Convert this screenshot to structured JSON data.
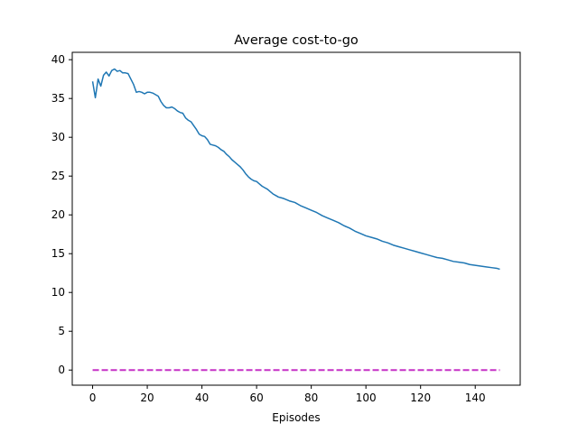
{
  "chart_data": {
    "type": "line",
    "title": "Average cost-to-go",
    "xlabel": "Episodes",
    "ylabel": "",
    "xlim": [
      -7.45,
      156.45
    ],
    "ylim": [
      -1.95,
      40.95
    ],
    "xticks": [
      0,
      20,
      40,
      60,
      80,
      100,
      120,
      140
    ],
    "yticks": [
      0,
      5,
      10,
      15,
      20,
      25,
      30,
      35,
      40
    ],
    "grid": false,
    "series": [
      {
        "color": "#1f77b4",
        "style": "solid",
        "x": [
          0,
          1,
          2,
          3,
          4,
          5,
          6,
          7,
          8,
          9,
          10,
          11,
          12,
          13,
          14,
          15,
          16,
          17,
          18,
          19,
          20,
          21,
          22,
          23,
          24,
          25,
          26,
          27,
          28,
          29,
          30,
          31,
          32,
          33,
          34,
          35,
          36,
          37,
          38,
          39,
          40,
          41,
          42,
          43,
          44,
          45,
          46,
          47,
          48,
          49,
          50,
          51,
          52,
          53,
          54,
          55,
          56,
          57,
          58,
          59,
          60,
          61,
          62,
          63,
          64,
          65,
          66,
          67,
          68,
          69,
          70,
          72,
          74,
          76,
          78,
          80,
          82,
          84,
          86,
          88,
          90,
          92,
          94,
          96,
          98,
          100,
          102,
          104,
          106,
          108,
          110,
          112,
          114,
          116,
          118,
          120,
          122,
          124,
          126,
          128,
          130,
          132,
          134,
          136,
          138,
          140,
          142,
          144,
          146,
          148,
          149
        ],
        "y": [
          37.2,
          35.1,
          37.5,
          36.6,
          38.0,
          38.4,
          37.9,
          38.6,
          38.8,
          38.5,
          38.6,
          38.3,
          38.3,
          38.2,
          37.5,
          36.8,
          35.8,
          35.9,
          35.8,
          35.6,
          35.8,
          35.8,
          35.7,
          35.5,
          35.3,
          34.6,
          34.1,
          33.8,
          33.8,
          33.9,
          33.7,
          33.4,
          33.2,
          33.1,
          32.5,
          32.2,
          32.0,
          31.5,
          31.0,
          30.4,
          30.2,
          30.1,
          29.7,
          29.1,
          29.0,
          28.9,
          28.7,
          28.4,
          28.2,
          27.8,
          27.5,
          27.1,
          26.8,
          26.5,
          26.2,
          25.8,
          25.3,
          24.9,
          24.6,
          24.4,
          24.3,
          24.0,
          23.7,
          23.5,
          23.3,
          23.0,
          22.7,
          22.5,
          22.3,
          22.2,
          22.1,
          21.8,
          21.6,
          21.2,
          20.9,
          20.6,
          20.3,
          19.9,
          19.6,
          19.3,
          19.0,
          18.6,
          18.3,
          17.9,
          17.6,
          17.3,
          17.1,
          16.9,
          16.6,
          16.4,
          16.1,
          15.9,
          15.7,
          15.5,
          15.3,
          15.1,
          14.9,
          14.7,
          14.5,
          14.4,
          14.2,
          14.0,
          13.9,
          13.8,
          13.6,
          13.5,
          13.4,
          13.3,
          13.2,
          13.1,
          13.0
        ]
      },
      {
        "color": "#c632c6",
        "style": "dashed",
        "x": [
          0,
          149
        ],
        "y": [
          0,
          0
        ]
      }
    ]
  }
}
